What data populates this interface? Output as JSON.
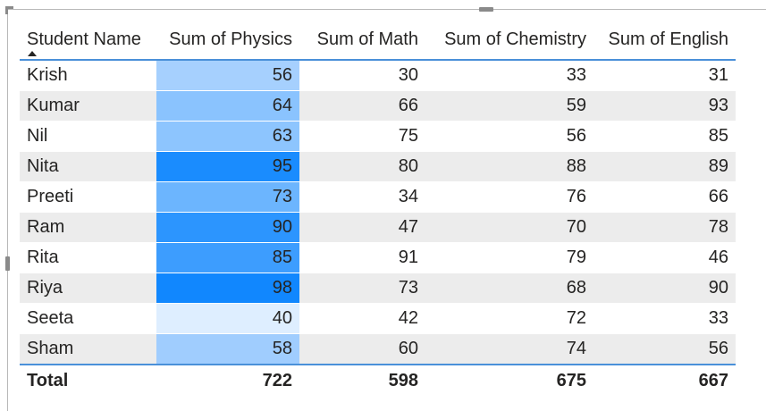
{
  "table": {
    "columns": [
      "Student Name",
      "Sum of Physics",
      "Sum of Math",
      "Sum of Chemistry",
      "Sum of English"
    ],
    "sort": {
      "column": "Student Name",
      "direction": "ascending"
    },
    "rows": [
      {
        "name": "Krish",
        "physics": 56,
        "math": 30,
        "chemistry": 33,
        "english": 31,
        "physics_color": "#a6d0fe"
      },
      {
        "name": "Kumar",
        "physics": 64,
        "math": 66,
        "chemistry": 59,
        "english": 93,
        "physics_color": "#8ac3fe"
      },
      {
        "name": "Nil",
        "physics": 63,
        "math": 75,
        "chemistry": 56,
        "english": 85,
        "physics_color": "#8dc5fe"
      },
      {
        "name": "Nita",
        "physics": 95,
        "math": 80,
        "chemistry": 88,
        "english": 89,
        "physics_color": "#1a8cfe"
      },
      {
        "name": "Preeti",
        "physics": 73,
        "math": 34,
        "chemistry": 76,
        "english": 66,
        "physics_color": "#6cb5fe"
      },
      {
        "name": "Ram",
        "physics": 90,
        "math": 47,
        "chemistry": 70,
        "english": 78,
        "physics_color": "#2c95fe"
      },
      {
        "name": "Rita",
        "physics": 85,
        "math": 91,
        "chemistry": 79,
        "english": 46,
        "physics_color": "#3d9dfe"
      },
      {
        "name": "Riya",
        "physics": 98,
        "math": 73,
        "chemistry": 68,
        "english": 90,
        "physics_color": "#1187fe"
      },
      {
        "name": "Seeta",
        "physics": 40,
        "math": 42,
        "chemistry": 72,
        "english": 33,
        "physics_color": "#deeeff"
      },
      {
        "name": "Sham",
        "physics": 58,
        "math": 60,
        "chemistry": 74,
        "english": 56,
        "physics_color": "#a0cdfe"
      }
    ],
    "total": {
      "label": "Total",
      "physics": 722,
      "math": 598,
      "chemistry": 675,
      "english": 667
    }
  },
  "colors": {
    "header_rule": "#4a90d9",
    "alt_row": "#ececec",
    "text": "#252423"
  }
}
